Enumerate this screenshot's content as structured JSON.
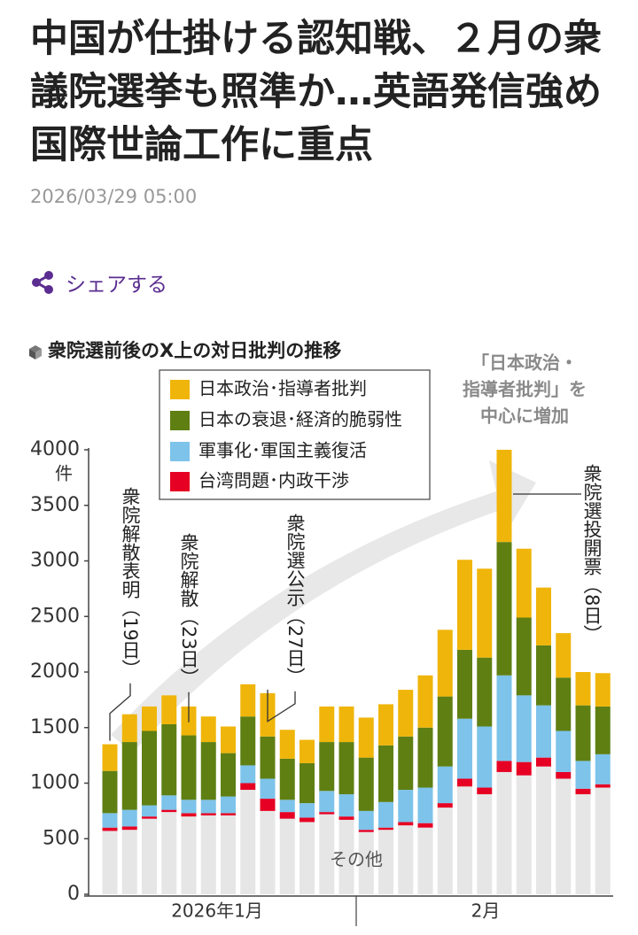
{
  "header": {
    "title": "中国が仕掛ける認知戦、２月の衆議院選挙も照準か…英語発信強め国際世論工作に重点",
    "date": "2026/03/29 05:00",
    "share": "シェアする"
  },
  "chart_data": {
    "type": "stacked_bar",
    "title": "衆院選前後のX上の対日批判の推移",
    "y_unit": "件",
    "categories": [
      null,
      null,
      null,
      null,
      null,
      null,
      null,
      null,
      null,
      null,
      null,
      null,
      null,
      null,
      null,
      null,
      null,
      null,
      null,
      null,
      null,
      null,
      null,
      null,
      null,
      null
    ],
    "x_group_labels": [
      "2026年1月",
      "2月"
    ],
    "ylim": [
      0,
      4000
    ],
    "yticks": [
      0,
      500,
      1000,
      1500,
      2000,
      2500,
      3000,
      3500,
      4000
    ],
    "series": [
      {
        "name": "その他",
        "color": "#e6e6e6",
        "values": [
          570,
          580,
          680,
          740,
          700,
          710,
          710,
          940,
          750,
          680,
          650,
          720,
          670,
          560,
          580,
          620,
          600,
          780,
          970,
          900,
          1100,
          1070,
          1150,
          1040,
          900,
          960
        ]
      },
      {
        "name": "台湾問題･内政干渉",
        "color": "#e60023",
        "values": [
          30,
          30,
          20,
          20,
          30,
          20,
          20,
          60,
          110,
          60,
          40,
          20,
          30,
          20,
          20,
          30,
          40,
          40,
          70,
          60,
          100,
          120,
          80,
          60,
          50,
          30
        ]
      },
      {
        "name": "軍事化･軍国主義復活",
        "color": "#7dc3ea",
        "values": [
          130,
          150,
          100,
          130,
          120,
          120,
          150,
          160,
          180,
          110,
          130,
          190,
          200,
          170,
          230,
          290,
          320,
          330,
          540,
          550,
          770,
          600,
          470,
          370,
          250,
          270
        ]
      },
      {
        "name": "日本の衰退･経済的脆弱性",
        "color": "#5f7f13",
        "values": [
          380,
          610,
          670,
          640,
          580,
          520,
          390,
          440,
          380,
          370,
          360,
          440,
          470,
          480,
          510,
          480,
          540,
          630,
          620,
          620,
          1200,
          700,
          540,
          480,
          500,
          430
        ]
      },
      {
        "name": "日本政治･指導者批判",
        "color": "#f0b50a",
        "values": [
          240,
          250,
          220,
          260,
          260,
          230,
          240,
          290,
          390,
          260,
          210,
          320,
          320,
          360,
          370,
          420,
          470,
          600,
          810,
          800,
          830,
          620,
          520,
          400,
          300,
          300
        ]
      }
    ],
    "annotations": [
      "衆院解散表明（19日）",
      "衆院解散（23日）",
      "衆院選公示（27日）",
      "衆院選投開票（8日）"
    ],
    "arrow_note": [
      "「日本政治・",
      "指導者批判」を",
      "中心に増加"
    ]
  }
}
